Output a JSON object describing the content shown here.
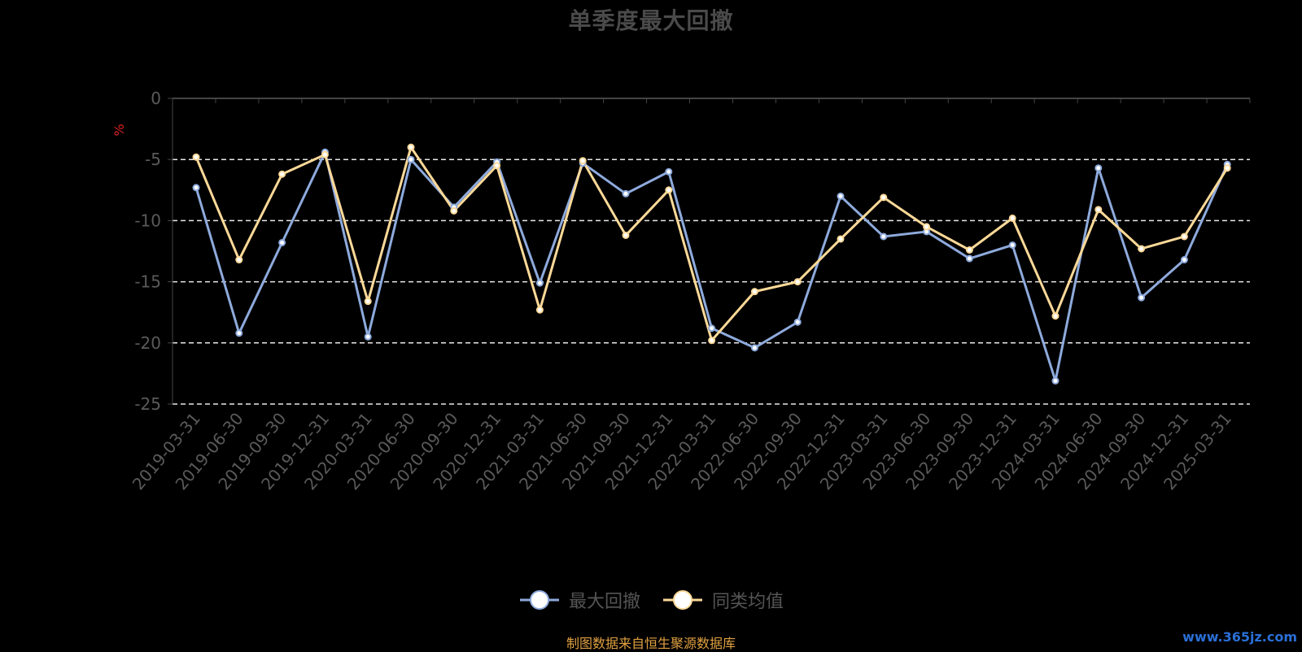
{
  "chart_data": {
    "type": "line",
    "title": "单季度最大回撤",
    "ylabel": "%",
    "ylim": [
      -25,
      0
    ],
    "yticks": [
      0,
      -5,
      -10,
      -15,
      -20,
      -25
    ],
    "grid": true,
    "legend_position": "bottom",
    "categories": [
      "2019-03-31",
      "2019-06-30",
      "2019-09-30",
      "2019-12-31",
      "2020-03-31",
      "2020-06-30",
      "2020-09-30",
      "2020-12-31",
      "2021-03-31",
      "2021-06-30",
      "2021-09-30",
      "2021-12-31",
      "2022-03-31",
      "2022-06-30",
      "2022-09-30",
      "2022-12-31",
      "2023-03-31",
      "2023-06-30",
      "2023-09-30",
      "2023-12-31",
      "2024-03-31",
      "2024-06-30",
      "2024-09-30",
      "2024-12-31",
      "2025-03-31"
    ],
    "series": [
      {
        "name": "最大回撤",
        "color": "#8eaadc",
        "values": [
          -7.3,
          -19.2,
          -11.8,
          -4.4,
          -19.5,
          -5.0,
          -8.9,
          -5.2,
          -15.1,
          -5.3,
          -7.8,
          -6.0,
          -18.8,
          -20.4,
          -18.3,
          -8.0,
          -11.3,
          -10.9,
          -13.1,
          -12.0,
          -23.1,
          -5.7,
          -16.3,
          -13.2,
          -5.4
        ]
      },
      {
        "name": "同类均值",
        "color": "#fcd998",
        "values": [
          -4.8,
          -13.2,
          -6.2,
          -4.6,
          -16.6,
          -4.0,
          -9.2,
          -5.5,
          -17.3,
          -5.1,
          -11.2,
          -7.5,
          -19.8,
          -15.8,
          -15.0,
          -11.5,
          -8.1,
          -10.5,
          -12.4,
          -9.8,
          -17.8,
          -9.1,
          -12.3,
          -11.3,
          -5.7
        ]
      }
    ]
  },
  "source_note": "制图数据来自恒生聚源数据库",
  "watermark": "www.365jz.com"
}
